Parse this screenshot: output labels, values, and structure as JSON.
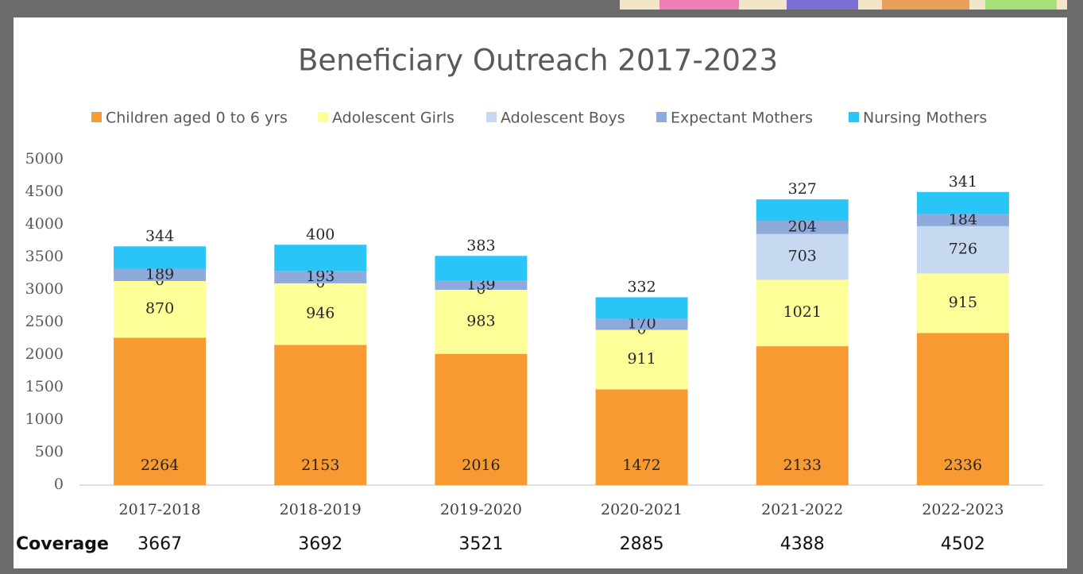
{
  "chart_data": {
    "type": "stacked-bar",
    "title": "Beneficiary Outreach 2017-2023",
    "categories": [
      "2017-2018",
      "2018-2019",
      "2019-2020",
      "2020-2021",
      "2021-2022",
      "2022-2023"
    ],
    "series": [
      {
        "name": "Children aged 0 to 6 yrs",
        "color": "#f79a32",
        "values": [
          2264,
          2153,
          2016,
          1472,
          2133,
          2336
        ]
      },
      {
        "name": "Adolescent Girls",
        "color": "#ffff99",
        "values": [
          870,
          946,
          983,
          911,
          1021,
          915
        ]
      },
      {
        "name": "Adolescent Boys",
        "color": "#c6d9f0",
        "values": [
          0,
          0,
          0,
          0,
          703,
          726
        ]
      },
      {
        "name": "Expectant Mothers",
        "color": "#8eaadb",
        "values": [
          189,
          193,
          139,
          170,
          204,
          184
        ]
      },
      {
        "name": "Nursing Mothers",
        "color": "#29c5f6",
        "values": [
          344,
          400,
          383,
          332,
          327,
          341
        ]
      }
    ],
    "ylim": [
      0,
      5000
    ],
    "yticks": [
      0,
      500,
      1000,
      1500,
      2000,
      2500,
      3000,
      3500,
      4000,
      4500,
      5000
    ],
    "grid": false,
    "coverage": {
      "label": "Coverage",
      "values": [
        3667,
        3692,
        3521,
        2885,
        4388,
        4502
      ]
    }
  }
}
